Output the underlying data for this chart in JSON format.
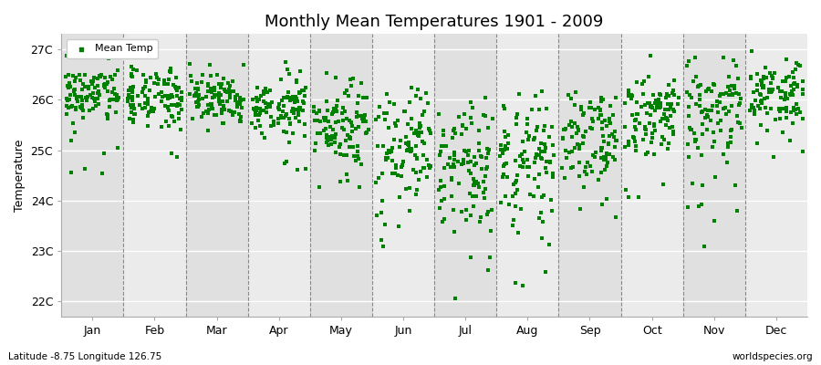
{
  "title": "Monthly Mean Temperatures 1901 - 2009",
  "ylabel": "Temperature",
  "xlabel_labels": [
    "Jan",
    "Feb",
    "Mar",
    "Apr",
    "May",
    "Jun",
    "Jul",
    "Aug",
    "Sep",
    "Oct",
    "Nov",
    "Dec"
  ],
  "ytick_labels": [
    "22C",
    "23C",
    "24C",
    "25C",
    "26C",
    "27C"
  ],
  "ytick_values": [
    22,
    23,
    24,
    25,
    26,
    27
  ],
  "ylim": [
    21.7,
    27.3
  ],
  "legend_label": "Mean Temp",
  "marker_color": "#008000",
  "marker": "s",
  "marker_size": 3,
  "bg_color_dark": "#E0E0E0",
  "bg_color_light": "#EBEBEB",
  "grid_color": "#FFFFFF",
  "dashed_line_color": "#888888",
  "subtitle": "Latitude -8.75 Longitude 126.75",
  "watermark": "worldspecies.org",
  "n_years": 109,
  "seed": 42,
  "monthly_means": [
    26.1,
    26.05,
    26.05,
    25.85,
    25.55,
    25.1,
    24.8,
    24.9,
    25.3,
    25.65,
    25.9,
    26.1
  ],
  "monthly_stds": [
    0.28,
    0.28,
    0.25,
    0.3,
    0.4,
    0.55,
    0.65,
    0.58,
    0.48,
    0.4,
    0.45,
    0.3
  ],
  "monthly_outlier_prob": [
    0.05,
    0.04,
    0.03,
    0.05,
    0.06,
    0.07,
    0.08,
    0.07,
    0.06,
    0.08,
    0.1,
    0.06
  ],
  "monthly_outlier_low": [
    24.5,
    24.6,
    24.8,
    24.5,
    24.2,
    23.0,
    22.0,
    22.3,
    23.5,
    23.8,
    23.0,
    24.5
  ]
}
